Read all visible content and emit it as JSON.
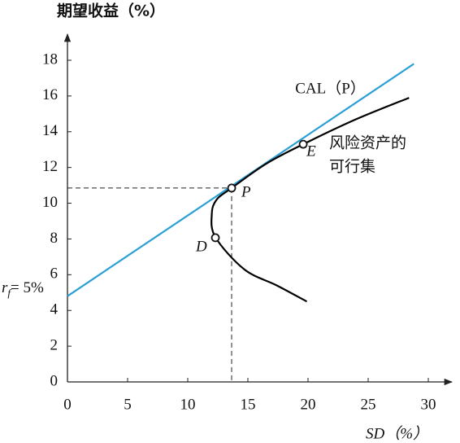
{
  "chart_data": {
    "type": "line",
    "title": "期望收益（%）",
    "xlabel": "SD（%）",
    "xlim": [
      0,
      30
    ],
    "xticks": [
      0,
      5,
      10,
      15,
      20,
      25,
      30
    ],
    "ylim": [
      0,
      18
    ],
    "yticks": [
      0,
      2,
      4,
      6,
      8,
      10,
      12,
      14,
      16,
      18
    ],
    "series": [
      {
        "name": "CAL（P）",
        "color": "#2a9fd6",
        "x": [
          0,
          28.8
        ],
        "values": [
          4.8,
          17.8
        ]
      },
      {
        "name": "风险资产的可行集",
        "color": "#000000",
        "x": [
          19.9,
          17.4,
          14.7,
          12.3,
          12.0,
          12.4,
          13.65,
          16.5,
          19.6,
          24,
          28.4
        ],
        "values": [
          4.5,
          5.4,
          6.3,
          8.1,
          9.4,
          10.2,
          10.85,
          12.2,
          13.3,
          14.7,
          15.9
        ]
      }
    ],
    "points": [
      {
        "label": "P",
        "x": 13.65,
        "y": 10.85
      },
      {
        "label": "D",
        "x": 12.3,
        "y": 8.07
      },
      {
        "label": "E",
        "x": 19.6,
        "y": 13.3
      }
    ],
    "annotations": {
      "rf": {
        "base": "r",
        "sub": "f",
        "text": "= 5%"
      },
      "feasible": [
        "风险资产的",
        "可行集"
      ]
    }
  }
}
